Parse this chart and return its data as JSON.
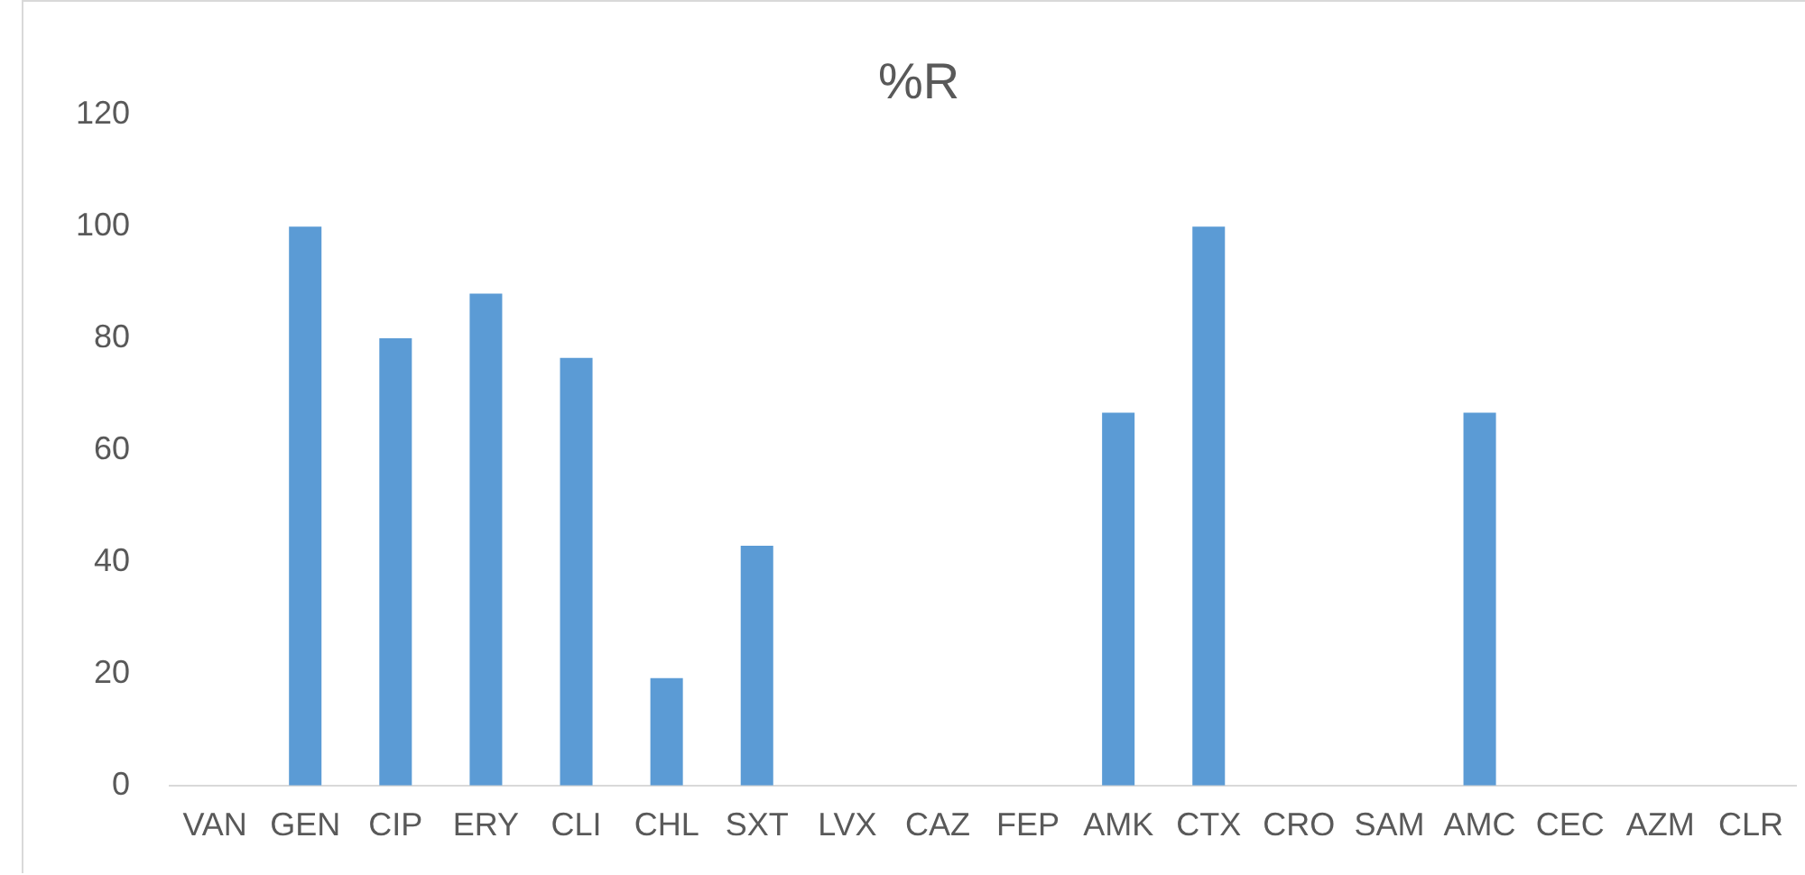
{
  "chart_data": {
    "type": "bar",
    "title": "%R",
    "categories": [
      "VAN",
      "GEN",
      "CIP",
      "ERY",
      "CLI",
      "CHL",
      "SXT",
      "LVX",
      "CAZ",
      "FEP",
      "AMK",
      "CTX",
      "CRO",
      "SAM",
      "AMC",
      "CEC",
      "AZM",
      "CLR"
    ],
    "values": [
      0,
      100,
      80,
      88,
      76.5,
      19.2,
      42.9,
      0,
      0,
      0,
      66.7,
      100,
      0,
      0,
      66.7,
      0,
      0,
      0
    ],
    "color": "#5b9bd5",
    "ylim": [
      0,
      120
    ],
    "yticks": [
      0,
      20,
      40,
      60,
      80,
      100,
      120
    ],
    "grid": false,
    "legend": false
  }
}
